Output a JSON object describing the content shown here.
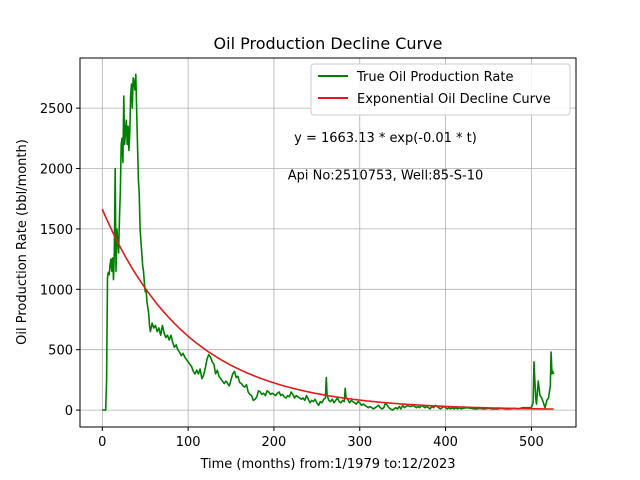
{
  "chart_data": {
    "type": "line",
    "title": "Oil Production Decline Curve",
    "xlabel": "Time (months) from:1/1979 to:12/2023",
    "ylabel": "Oil Production Rate (bbl/month)",
    "xlim": [
      -26,
      552
    ],
    "ylim": [
      -140,
      2915
    ],
    "xticks": [
      0,
      100,
      200,
      300,
      400,
      500
    ],
    "yticks": [
      0,
      500,
      1000,
      1500,
      2000,
      2500
    ],
    "grid": true,
    "legend_position": "top-right",
    "annotations": [
      {
        "text": "y = 1663.13 * exp(-0.01 * t)",
        "x": 330,
        "y": 2260
      },
      {
        "text": "Api No:2510753, Well:85-S-10",
        "x": 330,
        "y": 1950
      }
    ],
    "series": [
      {
        "name": "True Oil Production Rate",
        "color": "#008000",
        "style": "solid",
        "points": [
          [
            0,
            0
          ],
          [
            2,
            0
          ],
          [
            4,
            0
          ],
          [
            5,
            250
          ],
          [
            6,
            1100
          ],
          [
            7,
            1140
          ],
          [
            8,
            1120
          ],
          [
            9,
            1200
          ],
          [
            10,
            1250
          ],
          [
            11,
            1150
          ],
          [
            12,
            1260
          ],
          [
            13,
            1080
          ],
          [
            14,
            1300
          ],
          [
            15,
            2000
          ],
          [
            16,
            1150
          ],
          [
            17,
            1500
          ],
          [
            18,
            1400
          ],
          [
            19,
            1300
          ],
          [
            20,
            1600
          ],
          [
            21,
            1800
          ],
          [
            22,
            2200
          ],
          [
            23,
            2250
          ],
          [
            24,
            2050
          ],
          [
            25,
            2600
          ],
          [
            26,
            2200
          ],
          [
            27,
            2300
          ],
          [
            28,
            2400
          ],
          [
            29,
            2200
          ],
          [
            30,
            2350
          ],
          [
            31,
            2150
          ],
          [
            32,
            2300
          ],
          [
            33,
            2600
          ],
          [
            34,
            2700
          ],
          [
            35,
            2500
          ],
          [
            36,
            2750
          ],
          [
            37,
            2720
          ],
          [
            38,
            2650
          ],
          [
            39,
            2780
          ],
          [
            40,
            2500
          ],
          [
            41,
            2200
          ],
          [
            42,
            1900
          ],
          [
            43,
            1800
          ],
          [
            44,
            1500
          ],
          [
            45,
            1400
          ],
          [
            46,
            1300
          ],
          [
            47,
            1200
          ],
          [
            48,
            1150
          ],
          [
            49,
            1050
          ],
          [
            50,
            980
          ],
          [
            51,
            1000
          ],
          [
            52,
            900
          ],
          [
            53,
            850
          ],
          [
            54,
            800
          ],
          [
            55,
            700
          ],
          [
            56,
            650
          ],
          [
            58,
            720
          ],
          [
            60,
            680
          ],
          [
            62,
            700
          ],
          [
            64,
            650
          ],
          [
            66,
            680
          ],
          [
            68,
            620
          ],
          [
            70,
            700
          ],
          [
            72,
            640
          ],
          [
            74,
            600
          ],
          [
            76,
            620
          ],
          [
            78,
            580
          ],
          [
            80,
            620
          ],
          [
            82,
            560
          ],
          [
            84,
            520
          ],
          [
            86,
            540
          ],
          [
            88,
            500
          ],
          [
            90,
            480
          ],
          [
            92,
            450
          ],
          [
            94,
            470
          ],
          [
            96,
            440
          ],
          [
            98,
            420
          ],
          [
            100,
            400
          ],
          [
            102,
            380
          ],
          [
            104,
            360
          ],
          [
            106,
            320
          ],
          [
            108,
            300
          ],
          [
            110,
            330
          ],
          [
            112,
            300
          ],
          [
            114,
            340
          ],
          [
            116,
            260
          ],
          [
            118,
            290
          ],
          [
            120,
            350
          ],
          [
            122,
            420
          ],
          [
            124,
            460
          ],
          [
            126,
            440
          ],
          [
            128,
            400
          ],
          [
            130,
            380
          ],
          [
            132,
            300
          ],
          [
            134,
            330
          ],
          [
            136,
            280
          ],
          [
            138,
            260
          ],
          [
            140,
            240
          ],
          [
            142,
            220
          ],
          [
            144,
            240
          ],
          [
            146,
            220
          ],
          [
            148,
            200
          ],
          [
            150,
            250
          ],
          [
            152,
            300
          ],
          [
            154,
            320
          ],
          [
            156,
            270
          ],
          [
            158,
            280
          ],
          [
            160,
            230
          ],
          [
            162,
            220
          ],
          [
            164,
            200
          ],
          [
            166,
            190
          ],
          [
            168,
            210
          ],
          [
            170,
            150
          ],
          [
            172,
            130
          ],
          [
            174,
            120
          ],
          [
            176,
            80
          ],
          [
            178,
            90
          ],
          [
            180,
            110
          ],
          [
            182,
            160
          ],
          [
            184,
            150
          ],
          [
            186,
            130
          ],
          [
            188,
            140
          ],
          [
            190,
            120
          ],
          [
            192,
            160
          ],
          [
            194,
            150
          ],
          [
            196,
            130
          ],
          [
            198,
            140
          ],
          [
            200,
            130
          ],
          [
            202,
            120
          ],
          [
            204,
            140
          ],
          [
            206,
            150
          ],
          [
            208,
            120
          ],
          [
            210,
            130
          ],
          [
            212,
            110
          ],
          [
            214,
            100
          ],
          [
            216,
            120
          ],
          [
            218,
            110
          ],
          [
            220,
            150
          ],
          [
            222,
            130
          ],
          [
            224,
            100
          ],
          [
            226,
            120
          ],
          [
            228,
            110
          ],
          [
            230,
            100
          ],
          [
            232,
            90
          ],
          [
            234,
            100
          ],
          [
            236,
            80
          ],
          [
            238,
            120
          ],
          [
            240,
            90
          ],
          [
            242,
            60
          ],
          [
            244,
            80
          ],
          [
            246,
            70
          ],
          [
            248,
            90
          ],
          [
            250,
            60
          ],
          [
            252,
            40
          ],
          [
            254,
            70
          ],
          [
            256,
            60
          ],
          [
            258,
            90
          ],
          [
            260,
            100
          ],
          [
            261,
            270
          ],
          [
            262,
            120
          ],
          [
            264,
            80
          ],
          [
            266,
            70
          ],
          [
            268,
            90
          ],
          [
            270,
            60
          ],
          [
            272,
            80
          ],
          [
            274,
            100
          ],
          [
            276,
            70
          ],
          [
            278,
            60
          ],
          [
            280,
            80
          ],
          [
            282,
            70
          ],
          [
            283,
            180
          ],
          [
            284,
            100
          ],
          [
            286,
            90
          ],
          [
            288,
            60
          ],
          [
            290,
            80
          ],
          [
            292,
            70
          ],
          [
            294,
            60
          ],
          [
            296,
            50
          ],
          [
            298,
            70
          ],
          [
            300,
            60
          ],
          [
            302,
            40
          ],
          [
            304,
            50
          ],
          [
            306,
            40
          ],
          [
            308,
            30
          ],
          [
            310,
            20
          ],
          [
            312,
            30
          ],
          [
            314,
            20
          ],
          [
            316,
            10
          ],
          [
            318,
            20
          ],
          [
            320,
            30
          ],
          [
            322,
            40
          ],
          [
            324,
            20
          ],
          [
            326,
            10
          ],
          [
            328,
            20
          ],
          [
            330,
            60
          ],
          [
            332,
            40
          ],
          [
            334,
            20
          ],
          [
            336,
            10
          ],
          [
            338,
            0
          ],
          [
            340,
            10
          ],
          [
            342,
            20
          ],
          [
            344,
            10
          ],
          [
            346,
            30
          ],
          [
            348,
            10
          ],
          [
            350,
            40
          ],
          [
            352,
            20
          ],
          [
            354,
            30
          ],
          [
            356,
            40
          ],
          [
            358,
            30
          ],
          [
            360,
            30
          ],
          [
            362,
            40
          ],
          [
            364,
            30
          ],
          [
            366,
            20
          ],
          [
            368,
            30
          ],
          [
            370,
            20
          ],
          [
            372,
            40
          ],
          [
            374,
            30
          ],
          [
            376,
            20
          ],
          [
            378,
            30
          ],
          [
            380,
            20
          ],
          [
            382,
            10
          ],
          [
            384,
            30
          ],
          [
            386,
            20
          ],
          [
            388,
            40
          ],
          [
            390,
            30
          ],
          [
            392,
            20
          ],
          [
            394,
            10
          ],
          [
            396,
            20
          ],
          [
            398,
            30
          ],
          [
            400,
            20
          ],
          [
            402,
            10
          ],
          [
            404,
            20
          ],
          [
            406,
            10
          ],
          [
            408,
            20
          ],
          [
            410,
            10
          ],
          [
            412,
            20
          ],
          [
            414,
            10
          ],
          [
            416,
            20
          ],
          [
            418,
            10
          ],
          [
            420,
            15
          ],
          [
            425,
            20
          ],
          [
            430,
            15
          ],
          [
            435,
            10
          ],
          [
            440,
            15
          ],
          [
            445,
            10
          ],
          [
            450,
            15
          ],
          [
            455,
            10
          ],
          [
            460,
            10
          ],
          [
            465,
            15
          ],
          [
            470,
            10
          ],
          [
            475,
            10
          ],
          [
            480,
            15
          ],
          [
            485,
            10
          ],
          [
            490,
            20
          ],
          [
            495,
            20
          ],
          [
            500,
            20
          ],
          [
            502,
            60
          ],
          [
            503,
            400
          ],
          [
            504,
            250
          ],
          [
            505,
            100
          ],
          [
            506,
            50
          ],
          [
            508,
            240
          ],
          [
            510,
            120
          ],
          [
            512,
            100
          ],
          [
            514,
            60
          ],
          [
            516,
            20
          ],
          [
            518,
            80
          ],
          [
            520,
            100
          ],
          [
            522,
            200
          ],
          [
            523,
            480
          ],
          [
            524,
            300
          ],
          [
            525,
            320
          ],
          [
            526,
            300
          ]
        ]
      },
      {
        "name": "Exponential Oil Decline Curve",
        "color": "#e31a1c",
        "style": "solid",
        "function": {
          "a": 1663.13,
          "b": 0.01,
          "x_start": 0,
          "x_end": 526
        }
      }
    ]
  }
}
